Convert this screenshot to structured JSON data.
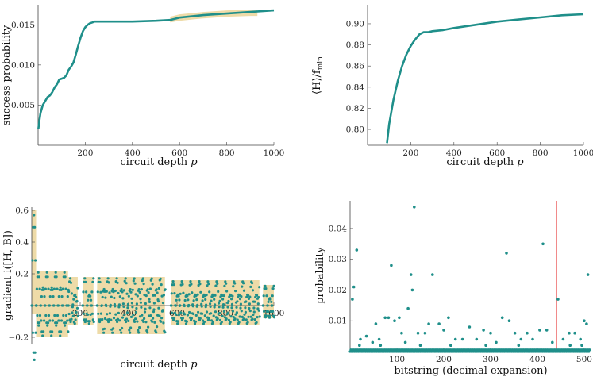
{
  "colors": {
    "series": "#1f8f8a",
    "band": "#ecd79f",
    "marker": "#f08080"
  },
  "chart_data": [
    {
      "id": "p1",
      "type": "line",
      "xlabel": "circuit depth",
      "xlabel_var": "p",
      "ylabel": "success probability",
      "xlim": [
        0,
        1000
      ],
      "ylim": [
        0.0,
        0.0175
      ],
      "xticks": [
        200,
        400,
        600,
        800,
        1000
      ],
      "yticks": [
        0.005,
        0.01,
        0.015
      ],
      "yticklabels": [
        "0.005",
        "0.010",
        "0.015"
      ],
      "series": [
        {
          "x": [
            1,
            5,
            10,
            20,
            30,
            40,
            50,
            60,
            70,
            80,
            90,
            100,
            110,
            120,
            130,
            140,
            150,
            160,
            170,
            180,
            190,
            200,
            210,
            220,
            230,
            240,
            250,
            300,
            400,
            500,
            560,
            600,
            700,
            800,
            900,
            950,
            1000
          ],
          "y": [
            0.002,
            0.003,
            0.004,
            0.005,
            0.0055,
            0.006,
            0.0062,
            0.0066,
            0.0072,
            0.0076,
            0.0082,
            0.0083,
            0.0084,
            0.0087,
            0.0094,
            0.0098,
            0.0103,
            0.0113,
            0.0124,
            0.0134,
            0.0142,
            0.0147,
            0.015,
            0.0152,
            0.0153,
            0.0154,
            0.0154,
            0.0154,
            0.0154,
            0.0155,
            0.0156,
            0.0159,
            0.0162,
            0.0164,
            0.0166,
            0.0167,
            0.0168
          ]
        }
      ],
      "band": {
        "x": [
          560,
          600,
          700,
          800,
          900,
          930
        ],
        "lo": [
          0.0153,
          0.0155,
          0.0158,
          0.016,
          0.0161,
          0.0161
        ],
        "hi": [
          0.016,
          0.0163,
          0.0166,
          0.0168,
          0.0169,
          0.0169
        ]
      }
    },
    {
      "id": "p2",
      "type": "line",
      "xlabel": "circuit depth",
      "xlabel_var": "p",
      "ylabel": "⟨H⟩/f",
      "ylabel_sub": "min",
      "xlim": [
        0,
        1000
      ],
      "ylim": [
        0.785,
        0.918
      ],
      "xticks": [
        200,
        400,
        600,
        800,
        1000
      ],
      "yticks": [
        0.8,
        0.82,
        0.84,
        0.86,
        0.88,
        0.9
      ],
      "yticklabels": [
        "0.80",
        "0.82",
        "0.84",
        "0.86",
        "0.88",
        "0.90"
      ],
      "series": [
        {
          "x": [
            90,
            100,
            120,
            140,
            160,
            180,
            200,
            220,
            240,
            260,
            280,
            300,
            350,
            400,
            500,
            600,
            700,
            800,
            900,
            1000
          ],
          "y": [
            0.787,
            0.805,
            0.828,
            0.846,
            0.86,
            0.871,
            0.879,
            0.885,
            0.89,
            0.892,
            0.892,
            0.893,
            0.894,
            0.896,
            0.899,
            0.902,
            0.904,
            0.906,
            0.908,
            0.909
          ]
        }
      ]
    },
    {
      "id": "p3",
      "type": "scatter",
      "xlabel": "circuit depth",
      "xlabel_var": "p",
      "ylabel": "gradient i([H, B])",
      "xlim": [
        0,
        1000
      ],
      "ylim": [
        -0.24,
        0.62
      ],
      "xticks": [
        200,
        400,
        600,
        800,
        1000
      ],
      "yticks": [
        -0.2,
        0.2,
        0.4,
        0.6
      ],
      "yticklabels": [
        "−0.2",
        "0.2",
        "0.4",
        "0.6"
      ],
      "segments": [
        {
          "start": 0,
          "end": 18,
          "amp": 0.6,
          "neg": 0.05
        },
        {
          "start": 18,
          "end": 150,
          "amp": 0.22,
          "neg": 0.2
        },
        {
          "start": 150,
          "end": 190,
          "amp": 0.18,
          "neg": 0.12
        },
        {
          "start": 210,
          "end": 255,
          "amp": 0.18,
          "neg": 0.12
        },
        {
          "start": 270,
          "end": 550,
          "amp": 0.18,
          "neg": 0.18
        },
        {
          "start": 575,
          "end": 940,
          "amp": 0.16,
          "neg": 0.12
        },
        {
          "start": 955,
          "end": 1000,
          "amp": 0.13,
          "neg": 0.08
        }
      ]
    },
    {
      "id": "p4",
      "type": "scatter",
      "xlabel": "bitstring (decimal expansion)",
      "ylabel": "probability",
      "xlim": [
        0,
        512
      ],
      "ylim": [
        0,
        0.049
      ],
      "xticks": [
        100,
        200,
        300,
        400,
        500
      ],
      "yticks": [
        0.01,
        0.02,
        0.03,
        0.04
      ],
      "yticklabels": [
        "0.01",
        "0.02",
        "0.03",
        "0.04"
      ],
      "marker_x": 441,
      "points": [
        [
          5,
          0.017
        ],
        [
          8,
          0.021
        ],
        [
          14,
          0.033
        ],
        [
          22,
          0.004
        ],
        [
          35,
          0.005
        ],
        [
          48,
          0.003
        ],
        [
          55,
          0.009
        ],
        [
          62,
          0.004
        ],
        [
          75,
          0.011
        ],
        [
          82,
          0.011
        ],
        [
          88,
          0.028
        ],
        [
          95,
          0.01
        ],
        [
          105,
          0.011
        ],
        [
          110,
          0.006
        ],
        [
          118,
          0.003
        ],
        [
          124,
          0.014
        ],
        [
          130,
          0.025
        ],
        [
          133,
          0.02
        ],
        [
          137,
          0.047
        ],
        [
          145,
          0.006
        ],
        [
          160,
          0.006
        ],
        [
          168,
          0.009
        ],
        [
          176,
          0.025
        ],
        [
          190,
          0.009
        ],
        [
          200,
          0.007
        ],
        [
          210,
          0.011
        ],
        [
          225,
          0.004
        ],
        [
          240,
          0.004
        ],
        [
          255,
          0.008
        ],
        [
          270,
          0.004
        ],
        [
          285,
          0.007
        ],
        [
          300,
          0.006
        ],
        [
          312,
          0.003
        ],
        [
          325,
          0.011
        ],
        [
          334,
          0.032
        ],
        [
          340,
          0.01
        ],
        [
          352,
          0.006
        ],
        [
          365,
          0.004
        ],
        [
          378,
          0.006
        ],
        [
          390,
          0.004
        ],
        [
          405,
          0.007
        ],
        [
          412,
          0.035
        ],
        [
          420,
          0.007
        ],
        [
          432,
          0.003
        ],
        [
          444,
          0.017
        ],
        [
          455,
          0.004
        ],
        [
          468,
          0.006
        ],
        [
          480,
          0.006
        ],
        [
          492,
          0.004
        ],
        [
          500,
          0.01
        ],
        [
          505,
          0.009
        ],
        [
          508,
          0.025
        ],
        [
          20,
          0.002
        ],
        [
          65,
          0.002
        ],
        [
          150,
          0.002
        ],
        [
          215,
          0.002
        ],
        [
          290,
          0.002
        ],
        [
          360,
          0.002
        ],
        [
          470,
          0.002
        ],
        [
          495,
          0.002
        ]
      ]
    }
  ]
}
